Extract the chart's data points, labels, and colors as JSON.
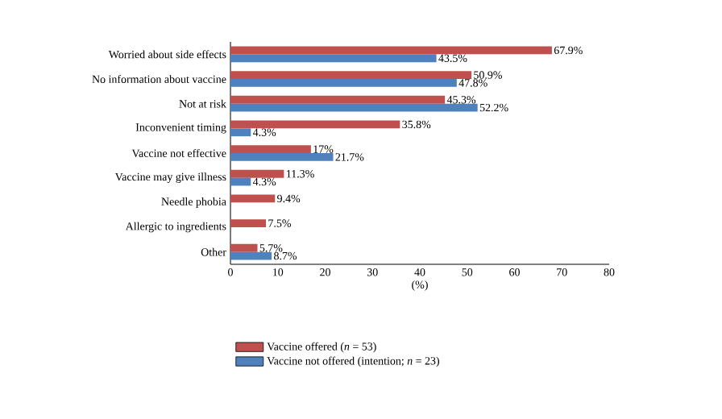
{
  "chart_data": {
    "type": "bar",
    "orientation": "horizontal",
    "categories": [
      "Worried about side effects",
      "No information about vaccine",
      "Not at risk",
      "Inconvenient timing",
      "Vaccine not effective",
      "Vaccine may give illness",
      "Needle phobia",
      "Allergic to ingredients",
      "Other"
    ],
    "series": [
      {
        "name": "Vaccine offered (*n* = 53)",
        "color": "#c0504d",
        "values": [
          67.9,
          50.9,
          45.3,
          35.8,
          17,
          11.3,
          9.4,
          7.5,
          5.7
        ],
        "value_labels": [
          "67.9%",
          "50.9%",
          "45.3%",
          "35.8%",
          "17%",
          "11.3%",
          "9.4%",
          "7.5%",
          "5.7%"
        ]
      },
      {
        "name": "Vaccine not offered (intention; *n* = 23)",
        "color": "#4f81bd",
        "values": [
          43.5,
          47.8,
          52.2,
          4.3,
          21.7,
          4.3,
          null,
          null,
          8.7
        ],
        "value_labels": [
          "43.5%",
          "47.8%",
          "52.2%",
          "4.3%",
          "21.7%",
          "4.3%",
          null,
          null,
          "8.7%"
        ]
      }
    ],
    "xlabel": "(%)",
    "xlim": [
      0,
      80
    ],
    "xticks": [
      0,
      10,
      20,
      30,
      40,
      50,
      60,
      70,
      80
    ],
    "grid": false,
    "legend": "bottom"
  }
}
